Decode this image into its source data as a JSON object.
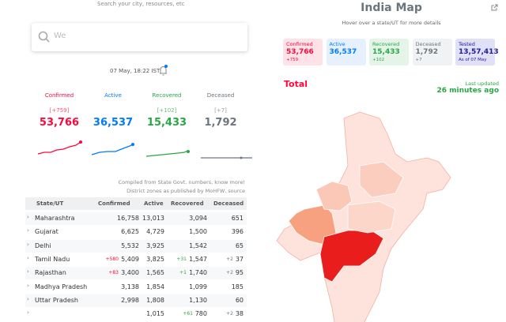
{
  "header": {
    "search_hint": "Search your city, resources, etc",
    "search_placeholder": "We",
    "timestamp": "07 May, 18:22 IST"
  },
  "stats": [
    {
      "label": "Confirmed",
      "delta": "[+759]",
      "value": "53,766",
      "color": "#ff073a"
    },
    {
      "label": "Active",
      "value": "36,537",
      "color": "#007bff"
    },
    {
      "label": "Recovered",
      "delta": "[+102]",
      "value": "15,433",
      "color": "#28a745"
    },
    {
      "label": "Deceased",
      "delta": "[+7]",
      "value": "1,792",
      "color": "#6c757d"
    }
  ],
  "notes": [
    "Compiled from State Govt. numbers, know more!",
    "District zones as published by MoHFW, source"
  ],
  "table": {
    "columns": [
      "State/UT",
      "Confirmed",
      "Active",
      "Recovered",
      "Deceased"
    ],
    "rows": [
      {
        "cells": [
          "Maharashtra",
          "16,758",
          "13,013",
          "3,094",
          "651"
        ]
      },
      {
        "cells": [
          "Gujarat",
          "6,625",
          "4,729",
          "1,500",
          "396"
        ]
      },
      {
        "cells": [
          "Delhi",
          "5,532",
          "3,925",
          "1,542",
          "65"
        ]
      },
      {
        "cells": [
          "Tamil Nadu",
          "5,409",
          "3,825",
          "1,547",
          "37"
        ],
        "deltas": {
          "1": "+580",
          "3": "+31",
          "4": "+2"
        }
      },
      {
        "cells": [
          "Rajasthan",
          "3,400",
          "1,565",
          "1,740",
          "95"
        ],
        "deltas": {
          "1": "+83",
          "3": "+1",
          "4": "+2"
        }
      },
      {
        "cells": [
          "Madhya Pradesh",
          "3,138",
          "1,854",
          "1,099",
          "185"
        ]
      },
      {
        "cells": [
          "Uttar Pradesh",
          "2,998",
          "1,808",
          "1,130",
          "60"
        ]
      },
      {
        "cells": [
          null,
          null,
          "1,015",
          "780",
          "38"
        ],
        "deltas": {
          "3": "+61",
          "4": "+2"
        }
      }
    ]
  },
  "map": {
    "title": "India Map",
    "subtitle": "Hover over a state/UT for more details",
    "cards": [
      {
        "label": "Confirmed",
        "value": "53,766",
        "delta": "+759",
        "color": "#ff073a",
        "bg": "#fde3e8"
      },
      {
        "label": "Active",
        "value": "36,537",
        "color": "#007bff",
        "bg": "#e6f0ff"
      },
      {
        "label": "Recovered",
        "value": "15,433",
        "delta": "+102",
        "color": "#28a745",
        "bg": "#e5f4e8"
      },
      {
        "label": "Deceased",
        "value": "1,792",
        "delta": "+7",
        "color": "#6c757d",
        "bg": "#f1f2f3"
      },
      {
        "label": "Tested",
        "value": "13,57,413",
        "delta": "As of 07 May",
        "color": "#201aa2",
        "bg": "#e0e0f7"
      }
    ],
    "total": "Total",
    "last_updated": "Last updated",
    "updated_ago": "26 minutes ago"
  }
}
